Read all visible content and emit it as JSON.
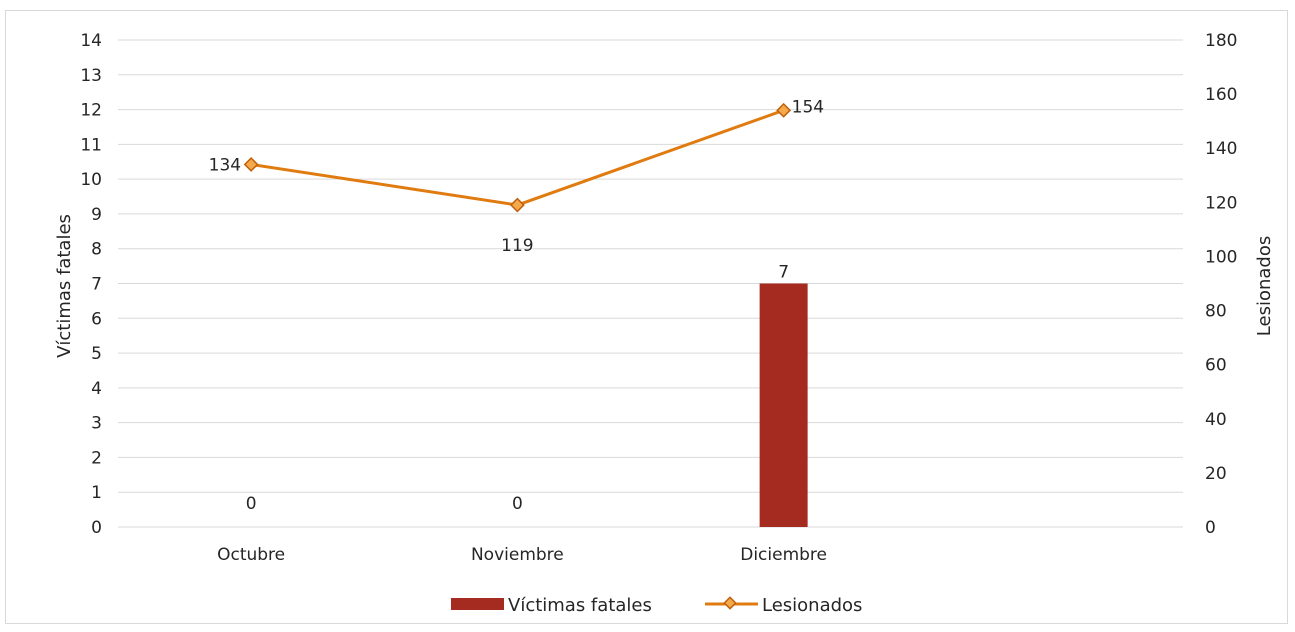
{
  "chart_data": {
    "type": "bar+line",
    "categories": [
      "Octubre",
      "Noviembre",
      "Diciembre"
    ],
    "series": [
      {
        "name": "Víctimas fatales",
        "type": "bar",
        "axis": "left",
        "values": [
          0,
          0,
          7
        ],
        "color": "#a52a1f"
      },
      {
        "name": "Lesionados",
        "type": "line",
        "axis": "right",
        "values": [
          134,
          119,
          154
        ],
        "color": "#e07b10",
        "marker_fill": "#f4a94a"
      }
    ],
    "ylabel": "Víctimas fatales",
    "y2label": "Lesionados",
    "ylim": [
      0,
      14
    ],
    "y2lim": [
      0,
      180
    ],
    "yticks": [
      "0",
      "1",
      "2",
      "3",
      "4",
      "5",
      "6",
      "7",
      "8",
      "9",
      "10",
      "11",
      "12",
      "13",
      "14"
    ],
    "y2ticks": [
      "0",
      "20",
      "40",
      "60",
      "80",
      "100",
      "120",
      "140",
      "160",
      "180"
    ],
    "grid": true,
    "legend": "bottom"
  }
}
